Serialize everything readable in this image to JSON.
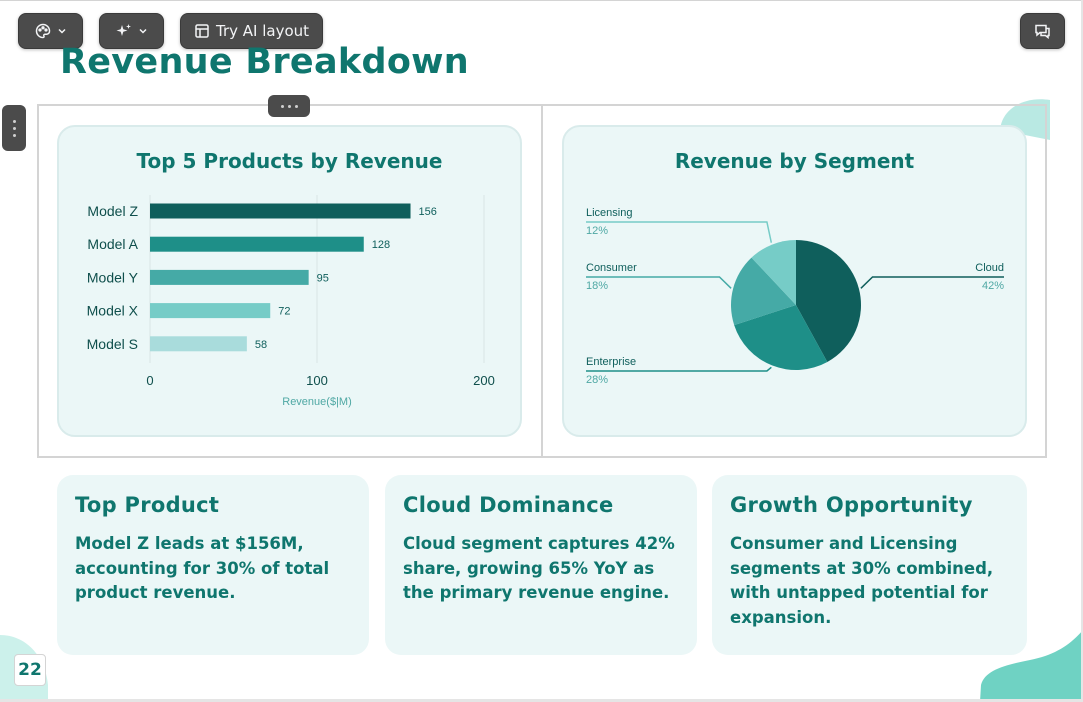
{
  "toolbar": {
    "theme_icon": "palette-icon",
    "ai_icon": "sparkles-icon",
    "layout_icon": "layout-icon",
    "layout_label": "Try AI layout",
    "comment_icon": "comment-icon"
  },
  "page": {
    "title": "Revenue Breakdown",
    "number": "22"
  },
  "colors": {
    "accent": "#0f766e",
    "card_bg": "#ebf7f7",
    "bar_shades": [
      "#0f5f5c",
      "#1e8f88",
      "#45aaa6",
      "#76ccc7",
      "#a9dcdc"
    ],
    "pie_shades": [
      "#0f5f5c",
      "#1e8f88",
      "#45aaa6",
      "#76ccc7"
    ]
  },
  "charts": {
    "bar_title": "Top 5 Products by Revenue",
    "pie_title": "Revenue by Segment"
  },
  "chart_data": [
    {
      "type": "bar",
      "orientation": "horizontal",
      "title": "Top 5 Products by Revenue",
      "categories": [
        "Model Z",
        "Model A",
        "Model Y",
        "Model X",
        "Model S"
      ],
      "values": [
        156,
        128,
        95,
        72,
        58
      ],
      "xlabel": "Revenue($|M)",
      "ylabel": "",
      "xlim": [
        0,
        200
      ],
      "xticks": [
        0,
        100,
        200
      ],
      "grid": true,
      "data_labels": true
    },
    {
      "type": "pie",
      "title": "Revenue by Segment",
      "labels": [
        "Cloud",
        "Enterprise",
        "Consumer",
        "Licensing"
      ],
      "values": [
        42,
        28,
        18,
        12
      ],
      "value_labels": [
        "42%",
        "28%",
        "18%",
        "12%"
      ]
    }
  ],
  "insights": [
    {
      "title": "Top Product",
      "body": "Model Z leads at $156M, accounting for 30% of total product revenue."
    },
    {
      "title": "Cloud Dominance",
      "body": "Cloud segment captures 42% share, growing 65% YoY as the primary revenue engine."
    },
    {
      "title": "Growth Opportunity",
      "body": "Consumer and Licensing segments at 30% combined, with untapped potential for expansion."
    }
  ]
}
